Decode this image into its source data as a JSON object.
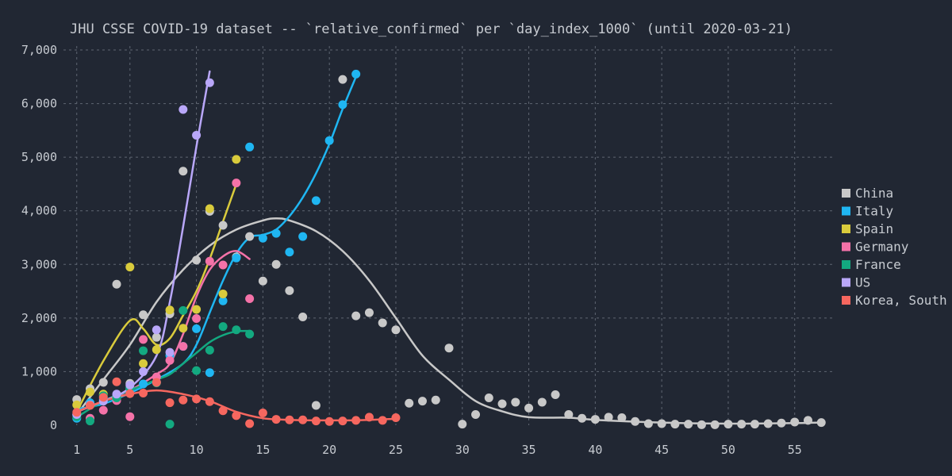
{
  "chart_data": {
    "type": "scatter",
    "title": "JHU CSSE COVID-19 dataset -- `relative_confirmed` per `day_index_1000` (until 2020-03-21)",
    "xlabel": "",
    "ylabel": "",
    "xlim": [
      0,
      58
    ],
    "ylim": [
      0,
      7000
    ],
    "x_ticks": [
      1,
      5,
      10,
      15,
      20,
      25,
      30,
      35,
      40,
      45,
      50,
      55
    ],
    "x_tick_labels": [
      "1",
      "5",
      "10",
      "15",
      "20",
      "25",
      "30",
      "35",
      "40",
      "45",
      "50",
      "55"
    ],
    "y_ticks": [
      0,
      1000,
      2000,
      3000,
      4000,
      5000,
      6000,
      7000
    ],
    "y_tick_labels": [
      "0",
      "1,000",
      "2,000",
      "3,000",
      "4,000",
      "5,000",
      "6,000",
      "7,000"
    ],
    "grid": true,
    "legend_position": "right",
    "series": [
      {
        "name": "China",
        "color": "#c8c8c8",
        "points": [
          [
            1,
            480
          ],
          [
            2,
            680
          ],
          [
            3,
            800
          ],
          [
            4,
            2630
          ],
          [
            5,
            780
          ],
          [
            6,
            2060
          ],
          [
            7,
            1640
          ],
          [
            8,
            2080
          ],
          [
            9,
            4740
          ],
          [
            10,
            3080
          ],
          [
            11,
            3990
          ],
          [
            12,
            3730
          ],
          [
            13,
            3140
          ],
          [
            14,
            3520
          ],
          [
            15,
            2690
          ],
          [
            16,
            3000
          ],
          [
            17,
            2510
          ],
          [
            18,
            2020
          ],
          [
            19,
            370
          ],
          [
            21,
            6450
          ],
          [
            22,
            2040
          ],
          [
            23,
            2100
          ],
          [
            24,
            1910
          ],
          [
            25,
            1780
          ],
          [
            26,
            410
          ],
          [
            27,
            450
          ],
          [
            28,
            470
          ],
          [
            29,
            1440
          ],
          [
            30,
            20
          ],
          [
            31,
            200
          ],
          [
            32,
            510
          ],
          [
            33,
            400
          ],
          [
            34,
            430
          ],
          [
            35,
            320
          ],
          [
            36,
            430
          ],
          [
            37,
            570
          ],
          [
            38,
            200
          ],
          [
            39,
            130
          ],
          [
            40,
            110
          ],
          [
            41,
            150
          ],
          [
            42,
            140
          ],
          [
            43,
            70
          ],
          [
            44,
            30
          ],
          [
            45,
            30
          ],
          [
            46,
            20
          ],
          [
            47,
            20
          ],
          [
            48,
            10
          ],
          [
            49,
            10
          ],
          [
            50,
            20
          ],
          [
            51,
            20
          ],
          [
            52,
            20
          ],
          [
            53,
            30
          ],
          [
            54,
            40
          ],
          [
            55,
            60
          ],
          [
            56,
            90
          ],
          [
            57,
            50
          ]
        ],
        "trend": [
          [
            1,
            200
          ],
          [
            3,
            850
          ],
          [
            5,
            1500
          ],
          [
            7,
            2300
          ],
          [
            9,
            2900
          ],
          [
            11,
            3350
          ],
          [
            13,
            3650
          ],
          [
            15,
            3820
          ],
          [
            16,
            3860
          ],
          [
            17,
            3820
          ],
          [
            19,
            3620
          ],
          [
            21,
            3250
          ],
          [
            23,
            2700
          ],
          [
            25,
            2000
          ],
          [
            27,
            1300
          ],
          [
            29,
            850
          ],
          [
            31,
            450
          ],
          [
            33,
            260
          ],
          [
            35,
            150
          ],
          [
            38,
            140
          ],
          [
            40,
            100
          ],
          [
            45,
            50
          ],
          [
            50,
            30
          ],
          [
            55,
            40
          ],
          [
            57,
            50
          ]
        ]
      },
      {
        "name": "Italy",
        "color": "#1fb6f2",
        "points": [
          [
            1,
            130
          ],
          [
            2,
            420
          ],
          [
            3,
            480
          ],
          [
            4,
            560
          ],
          [
            5,
            690
          ],
          [
            6,
            770
          ],
          [
            7,
            800
          ],
          [
            8,
            1300
          ],
          [
            9,
            1470
          ],
          [
            10,
            1800
          ],
          [
            11,
            980
          ],
          [
            12,
            2320
          ],
          [
            13,
            3120
          ],
          [
            14,
            5190
          ],
          [
            15,
            3490
          ],
          [
            16,
            3580
          ],
          [
            17,
            3230
          ],
          [
            18,
            3520
          ],
          [
            19,
            4190
          ],
          [
            20,
            5310
          ],
          [
            21,
            5980
          ],
          [
            22,
            6550
          ]
        ],
        "trend": [
          [
            1,
            300
          ],
          [
            3,
            400
          ],
          [
            5,
            600
          ],
          [
            7,
            850
          ],
          [
            9,
            1150
          ],
          [
            10,
            1500
          ],
          [
            11,
            2100
          ],
          [
            12,
            2700
          ],
          [
            13,
            3200
          ],
          [
            14,
            3500
          ],
          [
            15,
            3550
          ],
          [
            16,
            3650
          ],
          [
            17,
            3900
          ],
          [
            18,
            4250
          ],
          [
            19,
            4700
          ],
          [
            20,
            5250
          ],
          [
            21,
            5900
          ],
          [
            22,
            6500
          ]
        ]
      },
      {
        "name": "Spain",
        "color": "#d9cb3c",
        "points": [
          [
            1,
            380
          ],
          [
            2,
            620
          ],
          [
            3,
            580
          ],
          [
            4,
            520
          ],
          [
            5,
            2950
          ],
          [
            6,
            1150
          ],
          [
            7,
            1410
          ],
          [
            8,
            2150
          ],
          [
            9,
            1810
          ],
          [
            10,
            2160
          ],
          [
            11,
            4040
          ],
          [
            12,
            2450
          ],
          [
            13,
            4960
          ]
        ],
        "trend": [
          [
            1,
            250
          ],
          [
            3,
            1200
          ],
          [
            5,
            1950
          ],
          [
            6,
            1800
          ],
          [
            7,
            1500
          ],
          [
            8,
            1620
          ],
          [
            9,
            2050
          ],
          [
            10,
            2500
          ],
          [
            11,
            3100
          ],
          [
            12,
            3800
          ],
          [
            13,
            4500
          ]
        ]
      },
      {
        "name": "Germany",
        "color": "#f472a8",
        "points": [
          [
            1,
            200
          ],
          [
            2,
            130
          ],
          [
            3,
            280
          ],
          [
            4,
            460
          ],
          [
            5,
            160
          ],
          [
            6,
            1600
          ],
          [
            7,
            900
          ],
          [
            8,
            1210
          ],
          [
            9,
            1470
          ],
          [
            10,
            1990
          ],
          [
            11,
            3060
          ],
          [
            12,
            2990
          ],
          [
            13,
            4520
          ],
          [
            14,
            2360
          ]
        ],
        "trend": [
          [
            1,
            250
          ],
          [
            3,
            450
          ],
          [
            5,
            650
          ],
          [
            7,
            950
          ],
          [
            8,
            1150
          ],
          [
            9,
            1700
          ],
          [
            10,
            2400
          ],
          [
            11,
            2900
          ],
          [
            12,
            3150
          ],
          [
            13,
            3250
          ],
          [
            14,
            3100
          ]
        ]
      },
      {
        "name": "France",
        "color": "#13a980",
        "points": [
          [
            1,
            160
          ],
          [
            2,
            80
          ],
          [
            3,
            550
          ],
          [
            4,
            510
          ],
          [
            5,
            700
          ],
          [
            6,
            1390
          ],
          [
            7,
            790
          ],
          [
            8,
            20
          ],
          [
            9,
            2140
          ],
          [
            10,
            1020
          ],
          [
            11,
            1400
          ],
          [
            12,
            1840
          ],
          [
            13,
            1780
          ],
          [
            14,
            1700
          ]
        ],
        "trend": [
          [
            1,
            150
          ],
          [
            3,
            450
          ],
          [
            5,
            650
          ],
          [
            7,
            850
          ],
          [
            8,
            950
          ],
          [
            9,
            1150
          ],
          [
            10,
            1350
          ],
          [
            11,
            1550
          ],
          [
            12,
            1680
          ],
          [
            13,
            1750
          ],
          [
            14,
            1760
          ]
        ]
      },
      {
        "name": "US",
        "color": "#b9a7f9",
        "points": [
          [
            1,
            200
          ],
          [
            2,
            380
          ],
          [
            3,
            450
          ],
          [
            4,
            580
          ],
          [
            5,
            750
          ],
          [
            6,
            1000
          ],
          [
            7,
            1780
          ],
          [
            8,
            1360
          ],
          [
            9,
            5890
          ],
          [
            10,
            5410
          ],
          [
            11,
            6390
          ]
        ],
        "trend": [
          [
            1,
            250
          ],
          [
            3,
            450
          ],
          [
            5,
            700
          ],
          [
            7,
            1300
          ],
          [
            8,
            2300
          ],
          [
            9,
            3700
          ],
          [
            10,
            5200
          ],
          [
            11,
            6600
          ]
        ]
      },
      {
        "name": "Korea, South",
        "color": "#f6675f",
        "points": [
          [
            1,
            240
          ],
          [
            2,
            370
          ],
          [
            3,
            520
          ],
          [
            4,
            810
          ],
          [
            5,
            590
          ],
          [
            6,
            600
          ],
          [
            7,
            800
          ],
          [
            8,
            420
          ],
          [
            9,
            470
          ],
          [
            10,
            490
          ],
          [
            11,
            440
          ],
          [
            12,
            270
          ],
          [
            13,
            180
          ],
          [
            14,
            30
          ],
          [
            15,
            230
          ],
          [
            16,
            110
          ],
          [
            17,
            100
          ],
          [
            18,
            100
          ],
          [
            19,
            80
          ],
          [
            20,
            70
          ],
          [
            21,
            80
          ],
          [
            22,
            90
          ],
          [
            23,
            150
          ],
          [
            24,
            90
          ],
          [
            25,
            140
          ]
        ],
        "trend": [
          [
            1,
            250
          ],
          [
            3,
            450
          ],
          [
            5,
            580
          ],
          [
            7,
            650
          ],
          [
            9,
            580
          ],
          [
            11,
            450
          ],
          [
            13,
            250
          ],
          [
            15,
            130
          ],
          [
            17,
            100
          ],
          [
            19,
            90
          ],
          [
            21,
            90
          ],
          [
            23,
            100
          ],
          [
            25,
            120
          ]
        ]
      }
    ]
  }
}
